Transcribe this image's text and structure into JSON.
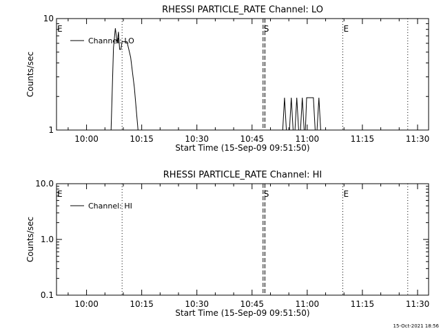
{
  "footer": {
    "timestamp": "15-Oct-2021 18:56"
  },
  "chart_data": [
    {
      "type": "line",
      "title": "RHESSI PARTICLE_RATE Channel: LO",
      "xlabel": "Start Time (15-Sep-09 09:51:50)",
      "ylabel": "Counts/sec",
      "y_scale": "log",
      "ylim": [
        1,
        10
      ],
      "xlim": [
        "09:51:50",
        "11:33:00"
      ],
      "x_ticks": [
        "10:00",
        "10:15",
        "10:30",
        "10:45",
        "11:00",
        "11:15",
        "11:30"
      ],
      "y_ticks": [
        "1",
        "10"
      ],
      "legend": {
        "position": "top-left",
        "label": "Channel: LO"
      },
      "markers": [
        {
          "time": "09:51:50",
          "label": "E",
          "style": "none"
        },
        {
          "time": "10:09:40",
          "label": "",
          "style": "dotted"
        },
        {
          "time": "10:48:00",
          "label": "S",
          "style": "dashed"
        },
        {
          "time": "10:48:30",
          "label": "",
          "style": "dashed"
        },
        {
          "time": "11:09:40",
          "label": "E",
          "style": "dotted"
        },
        {
          "time": "11:27:20",
          "label": "",
          "style": "dotted"
        }
      ],
      "series": [
        {
          "name": "Channel: LO",
          "segments": [
            [
              [
                "10:06:40",
                1.0
              ],
              [
                "10:07:20",
                5.5
              ],
              [
                "10:07:50",
                8.2
              ],
              [
                "10:08:20",
                6.0
              ],
              [
                "10:08:40",
                7.6
              ],
              [
                "10:09:00",
                5.3
              ],
              [
                "10:09:20",
                5.3
              ],
              [
                "10:09:40",
                6.2
              ],
              [
                "10:10:30",
                6.2
              ],
              [
                "10:11:00",
                6.2
              ],
              [
                "10:12:00",
                4.5
              ],
              [
                "10:13:00",
                2.4
              ],
              [
                "10:14:00",
                1.0
              ]
            ],
            [
              [
                "10:53:20",
                1.0
              ],
              [
                "10:53:50",
                1.95
              ],
              [
                "10:54:20",
                1.0
              ],
              [
                "10:55:10",
                1.0
              ],
              [
                "10:55:40",
                1.95
              ],
              [
                "10:56:10",
                1.0
              ],
              [
                "10:56:40",
                1.0
              ],
              [
                "10:57:10",
                1.95
              ],
              [
                "10:57:40",
                1.0
              ],
              [
                "10:58:10",
                1.0
              ],
              [
                "10:58:40",
                1.95
              ],
              [
                "10:59:10",
                1.0
              ],
              [
                "10:59:30",
                1.0
              ],
              [
                "10:59:50",
                1.95
              ],
              [
                "11:01:40",
                1.95
              ],
              [
                "11:02:10",
                1.0
              ],
              [
                "11:02:40",
                1.0
              ],
              [
                "11:03:10",
                1.95
              ],
              [
                "11:03:40",
                1.0
              ]
            ]
          ]
        }
      ]
    },
    {
      "type": "line",
      "title": "RHESSI PARTICLE_RATE Channel: HI",
      "xlabel": "Start Time (15-Sep-09 09:51:50)",
      "ylabel": "Counts/sec",
      "y_scale": "log",
      "ylim": [
        0.1,
        10
      ],
      "xlim": [
        "09:51:50",
        "11:33:00"
      ],
      "x_ticks": [
        "10:00",
        "10:15",
        "10:30",
        "10:45",
        "11:00",
        "11:15",
        "11:30"
      ],
      "y_ticks": [
        "0.1",
        "1.0",
        "10.0"
      ],
      "legend": {
        "position": "top-left",
        "label": "Channel: HI"
      },
      "markers": [
        {
          "time": "09:51:50",
          "label": "E",
          "style": "none"
        },
        {
          "time": "10:09:40",
          "label": "",
          "style": "dotted"
        },
        {
          "time": "10:48:00",
          "label": "S",
          "style": "dashed"
        },
        {
          "time": "10:48:30",
          "label": "",
          "style": "dashed"
        },
        {
          "time": "11:09:40",
          "label": "E",
          "style": "dotted"
        },
        {
          "time": "11:27:20",
          "label": "",
          "style": "dotted"
        }
      ],
      "series": [
        {
          "name": "Channel: HI",
          "segments": []
        }
      ]
    }
  ]
}
